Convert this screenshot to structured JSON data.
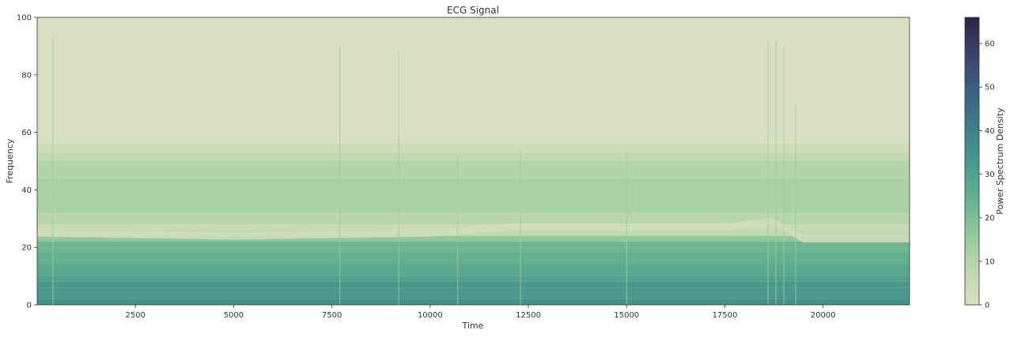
{
  "chart_data": {
    "type": "heatmap",
    "subtype": "spectrogram",
    "title": "ECG Signal",
    "xlabel": "Time",
    "ylabel": "Frequency",
    "xlim": [
      0,
      22200
    ],
    "ylim": [
      0,
      100
    ],
    "xticks": [
      2500,
      5000,
      7500,
      10000,
      12500,
      15000,
      17500,
      20000
    ],
    "xtick_labels": [
      "2500",
      "5000",
      "7500",
      "10000",
      "12500",
      "15000",
      "17500",
      "20000"
    ],
    "yticks": [
      0,
      20,
      40,
      60,
      80,
      100
    ],
    "ytick_labels": [
      "0",
      "20",
      "40",
      "60",
      "80",
      "100"
    ],
    "colorbar": {
      "label": "Power Spectrum Density",
      "range": [
        0,
        66
      ],
      "ticks": [
        0,
        10,
        20,
        30,
        40,
        50,
        60
      ],
      "tick_labels": [
        "0",
        "10",
        "20",
        "30",
        "40",
        "50",
        "60"
      ],
      "colormap": "crest",
      "colormap_stops": [
        {
          "value": 0,
          "color": "#d8dfc0"
        },
        {
          "value": 8,
          "color": "#bcd8ae"
        },
        {
          "value": 16,
          "color": "#93c99a"
        },
        {
          "value": 24,
          "color": "#66b290"
        },
        {
          "value": 32,
          "color": "#4a9b8d"
        },
        {
          "value": 40,
          "color": "#3f8189"
        },
        {
          "value": 48,
          "color": "#3c6584"
        },
        {
          "value": 56,
          "color": "#3c4a72"
        },
        {
          "value": 66,
          "color": "#2c2447"
        }
      ]
    },
    "frequency_profile": [
      {
        "freq": 0,
        "power": 34
      },
      {
        "freq": 2,
        "power": 36
      },
      {
        "freq": 4,
        "power": 30
      },
      {
        "freq": 6,
        "power": 35
      },
      {
        "freq": 8,
        "power": 31
      },
      {
        "freq": 10,
        "power": 29
      },
      {
        "freq": 14,
        "power": 26
      },
      {
        "freq": 18,
        "power": 24
      },
      {
        "freq": 22,
        "power": 21
      },
      {
        "freq": 24,
        "power": 12
      },
      {
        "freq": 26,
        "power": 3
      },
      {
        "freq": 28,
        "power": 7
      },
      {
        "freq": 32,
        "power": 11
      },
      {
        "freq": 38,
        "power": 12
      },
      {
        "freq": 44,
        "power": 11
      },
      {
        "freq": 50,
        "power": 9
      },
      {
        "freq": 53,
        "power": 5
      },
      {
        "freq": 56,
        "power": 1
      },
      {
        "freq": 60,
        "power": 0
      },
      {
        "freq": 100,
        "power": 0
      }
    ],
    "notch_band_by_time": [
      {
        "time": 0,
        "freq": 25
      },
      {
        "time": 5000,
        "freq": 24
      },
      {
        "time": 10000,
        "freq": 25
      },
      {
        "time": 12000,
        "freq": 27
      },
      {
        "time": 17500,
        "freq": 27
      },
      {
        "time": 18700,
        "freq": 29
      },
      {
        "time": 19500,
        "freq": 23
      },
      {
        "time": 22200,
        "freq": 23
      }
    ],
    "transient_bursts": [
      {
        "time": 400,
        "max_freq": 93
      },
      {
        "time": 7700,
        "max_freq": 90
      },
      {
        "time": 9200,
        "max_freq": 88
      },
      {
        "time": 10700,
        "max_freq": 52
      },
      {
        "time": 12300,
        "max_freq": 54
      },
      {
        "time": 15000,
        "max_freq": 53
      },
      {
        "time": 18600,
        "max_freq": 92
      },
      {
        "time": 18800,
        "max_freq": 92
      },
      {
        "time": 19000,
        "max_freq": 90
      },
      {
        "time": 19300,
        "max_freq": 70
      }
    ]
  }
}
